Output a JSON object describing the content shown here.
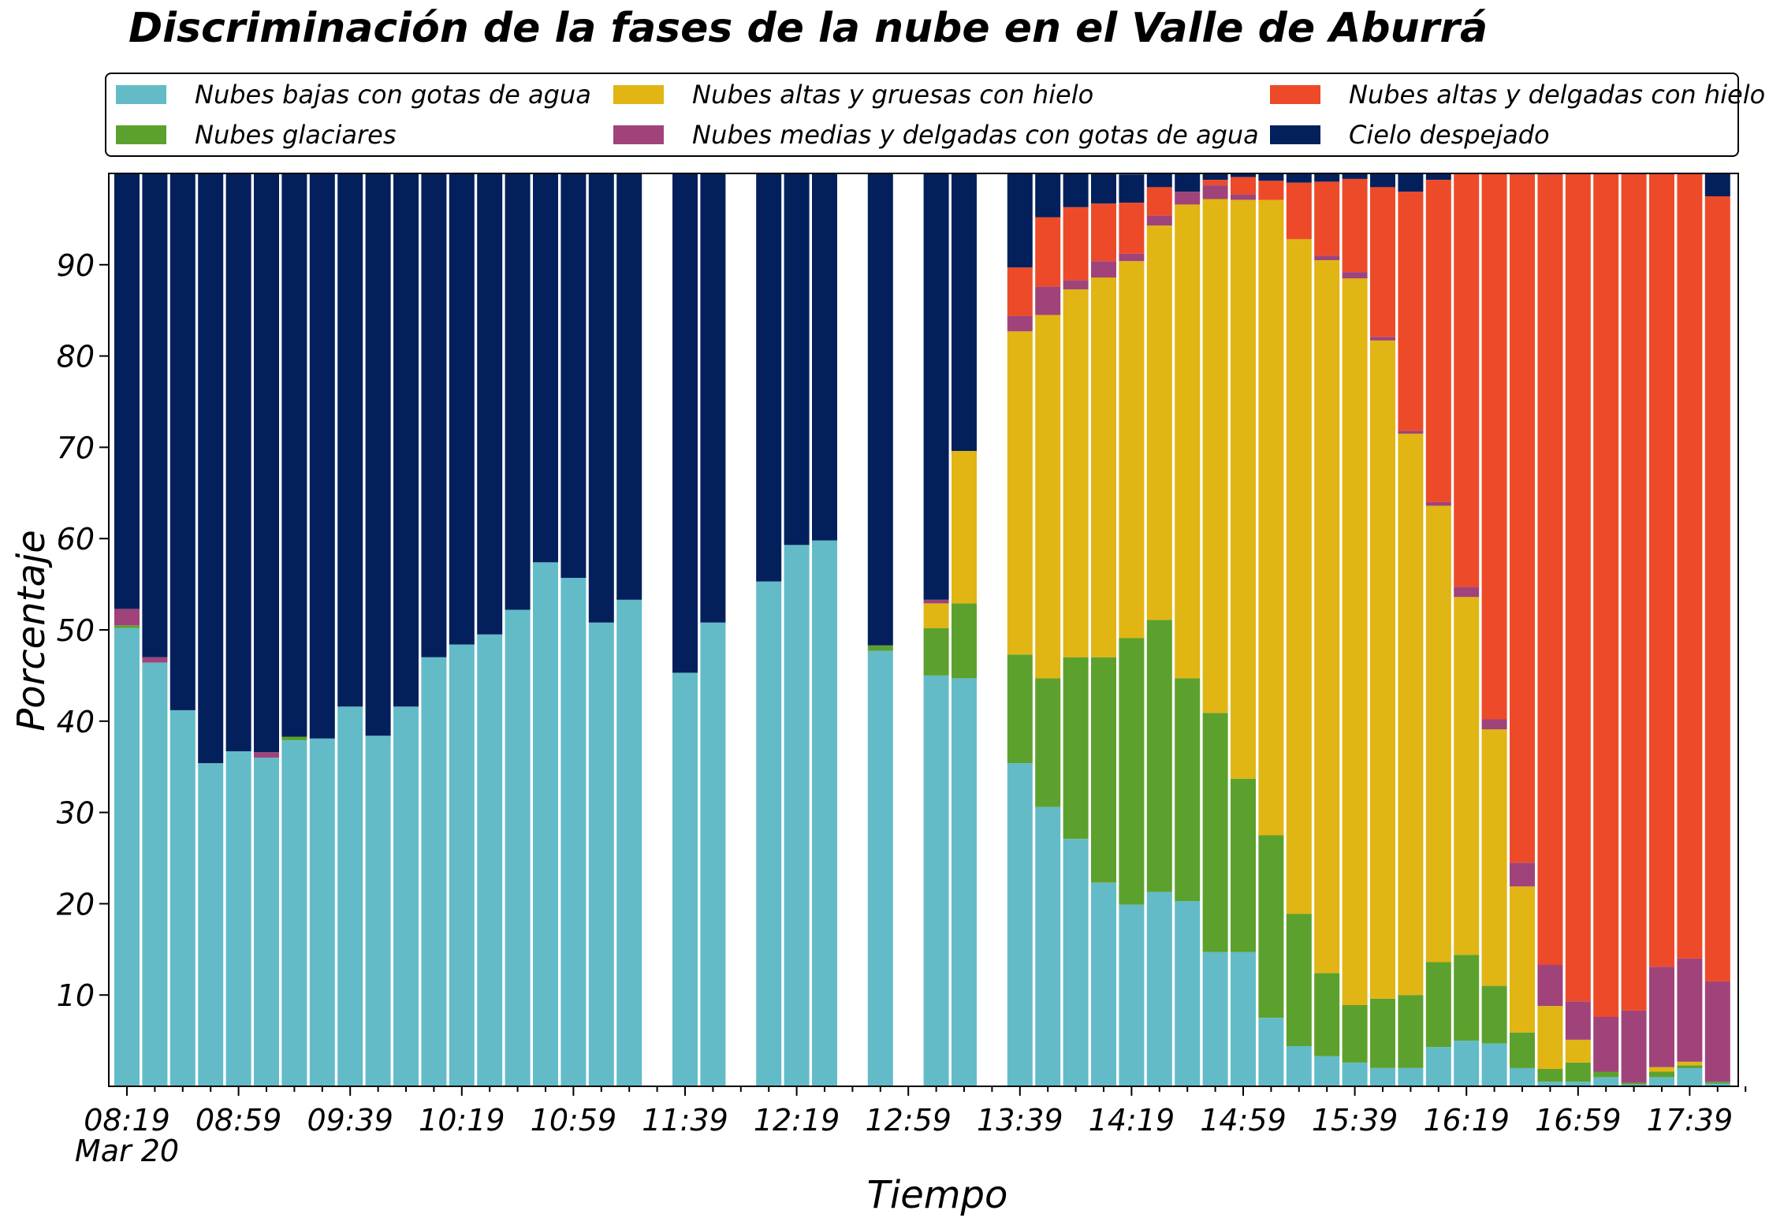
{
  "title": "Discriminación de la fases de la nube en el Valle de Aburrá",
  "legend": {
    "items": [
      {
        "label": "Nubes bajas con gotas de agua",
        "color": "#63bbc8"
      },
      {
        "label": "Nubes glaciares",
        "color": "#5ca12d"
      },
      {
        "label": "Nubes altas y gruesas con hielo",
        "color": "#e1b513"
      },
      {
        "label": "Nubes medias y delgadas con gotas de agua",
        "color": "#a0437b"
      },
      {
        "label": "Nubes altas y delgadas con hielo",
        "color": "#ed4a2a"
      },
      {
        "label": "Cielo despejado",
        "color": "#03205c"
      }
    ]
  },
  "chart_data": {
    "type": "bar",
    "stacked": true,
    "title": "Discriminación de la fases de la nube en el Valle de Aburrá",
    "xlabel": "Tiempo",
    "ylabel": "Porcentaje",
    "ylim": [
      0,
      100
    ],
    "yticks": [
      10,
      20,
      30,
      40,
      50,
      60,
      70,
      80,
      90
    ],
    "x_tick_labels": [
      "08:19",
      "08:59",
      "09:39",
      "10:19",
      "10:59",
      "11:39",
      "12:19",
      "12:59",
      "13:39",
      "14:19",
      "14:59",
      "15:39",
      "16:19",
      "16:59",
      "17:39"
    ],
    "x_tick_sublabel": "Mar 20",
    "interval_minutes": 10,
    "categories": [
      "08:19",
      "08:29",
      "08:39",
      "08:49",
      "08:59",
      "09:09",
      "09:19",
      "09:29",
      "09:39",
      "09:49",
      "09:59",
      "10:09",
      "10:19",
      "10:29",
      "10:39",
      "10:49",
      "10:59",
      "11:09",
      "11:19",
      "11:29",
      "11:39",
      "11:49",
      "11:59",
      "12:09",
      "12:19",
      "12:29",
      "12:39",
      "12:49",
      "12:59",
      "13:09",
      "13:19",
      "13:29",
      "13:39",
      "13:49",
      "13:59",
      "14:09",
      "14:19",
      "14:29",
      "14:39",
      "14:49",
      "14:59",
      "15:09",
      "15:19",
      "15:29",
      "15:39",
      "15:49",
      "15:59",
      "16:09",
      "16:19",
      "16:29",
      "16:39",
      "16:49",
      "16:59",
      "17:09",
      "17:19",
      "17:29",
      "17:39",
      "17:49"
    ],
    "series": [
      {
        "name": "Nubes bajas con gotas de agua",
        "color": "#63bbc8",
        "values": [
          50.2,
          46.4,
          41.2,
          35.4,
          36.7,
          36.0,
          37.9,
          38.1,
          41.6,
          38.4,
          41.6,
          47.0,
          48.4,
          49.5,
          52.2,
          57.4,
          55.7,
          50.8,
          53.3,
          null,
          45.3,
          50.8,
          null,
          55.3,
          59.3,
          59.8,
          null,
          47.7,
          null,
          45.0,
          44.7,
          null,
          35.4,
          30.6,
          27.1,
          22.3,
          19.9,
          21.3,
          20.3,
          14.7,
          14.7,
          7.5,
          4.4,
          3.3,
          2.6,
          2.0,
          2.0,
          4.3,
          5.0,
          4.7,
          2.0,
          0.5,
          0.5,
          1.0,
          0.2,
          1.0,
          2.0,
          0.3
        ]
      },
      {
        "name": "Nubes glaciares",
        "color": "#5ca12d",
        "values": [
          0.3,
          0,
          0,
          0,
          0,
          0,
          0.4,
          0,
          0,
          0,
          0,
          0,
          0,
          0,
          0,
          0,
          0,
          0,
          0,
          null,
          0,
          0,
          null,
          0,
          0,
          0,
          null,
          0.6,
          null,
          5.2,
          8.2,
          null,
          11.9,
          14.1,
          19.9,
          24.7,
          29.2,
          29.8,
          24.4,
          26.2,
          19.0,
          20.0,
          14.5,
          9.1,
          6.3,
          7.6,
          8.0,
          9.3,
          9.4,
          6.3,
          3.9,
          1.4,
          2.1,
          0.6,
          0.2,
          0.6,
          0.3,
          0.2
        ]
      },
      {
        "name": "Nubes altas y gruesas con hielo",
        "color": "#e1b513",
        "values": [
          0,
          0,
          0,
          0,
          0,
          0,
          0,
          0,
          0,
          0,
          0,
          0,
          0,
          0,
          0,
          0,
          0,
          0,
          0,
          null,
          0,
          0,
          null,
          0,
          0,
          0,
          null,
          0,
          null,
          2.7,
          16.7,
          null,
          35.4,
          39.8,
          40.3,
          41.6,
          41.3,
          43.2,
          51.9,
          56.3,
          63.4,
          69.6,
          73.9,
          78.1,
          79.6,
          72.1,
          61.5,
          50.0,
          39.2,
          28.1,
          16.0,
          6.9,
          2.5,
          0,
          0,
          0.5,
          0.4,
          0
        ]
      },
      {
        "name": "Nubes medias y delgadas con gotas de agua",
        "color": "#a0437b",
        "values": [
          1.8,
          0.6,
          0,
          0,
          0,
          0.6,
          0,
          0,
          0,
          0,
          0,
          0,
          0,
          0,
          0,
          0,
          0,
          0,
          0,
          null,
          0,
          0,
          null,
          0,
          0,
          0,
          null,
          0,
          null,
          0.4,
          0,
          null,
          1.7,
          3.1,
          1.0,
          1.8,
          0.8,
          1.1,
          1.4,
          1.5,
          0.6,
          0,
          0,
          0.5,
          0.7,
          0.4,
          0.3,
          0.4,
          1.1,
          1.1,
          2.6,
          4.5,
          4.2,
          6.0,
          7.9,
          11.0,
          11.3,
          11.0
        ]
      },
      {
        "name": "Nubes altas y delgadas con hielo",
        "color": "#ed4a2a",
        "values": [
          0,
          0,
          0,
          0,
          0,
          0,
          0,
          0,
          0,
          0,
          0,
          0,
          0,
          0,
          0,
          0,
          0,
          0,
          0,
          null,
          0,
          0,
          null,
          0,
          0,
          0,
          null,
          0,
          null,
          0,
          0,
          null,
          5.3,
          7.6,
          8.0,
          6.3,
          5.6,
          3.1,
          0,
          0.6,
          1.9,
          2.1,
          6.2,
          8.1,
          10.2,
          16.4,
          26.2,
          35.3,
          45.6,
          59.8,
          75.4,
          86.6,
          90.7,
          92.4,
          91.7,
          86.9,
          86.0,
          86.0
        ]
      },
      {
        "name": "Cielo despejado",
        "color": "#03205c",
        "values": [
          47.7,
          53.0,
          58.8,
          64.6,
          63.3,
          63.4,
          61.7,
          61.9,
          58.4,
          61.6,
          58.4,
          53.0,
          51.6,
          50.5,
          47.8,
          42.6,
          44.3,
          49.2,
          46.7,
          null,
          54.7,
          49.2,
          null,
          44.7,
          40.7,
          40.2,
          null,
          51.7,
          null,
          46.7,
          30.4,
          null,
          10.3,
          4.8,
          3.7,
          3.3,
          3.1,
          1.5,
          2.0,
          0.7,
          0.4,
          0.8,
          1.0,
          0.9,
          0.6,
          1.5,
          2.0,
          0.7,
          0.7,
          0,
          0.1,
          0.1,
          0,
          0,
          0,
          0,
          0,
          2.5
        ]
      }
    ]
  }
}
